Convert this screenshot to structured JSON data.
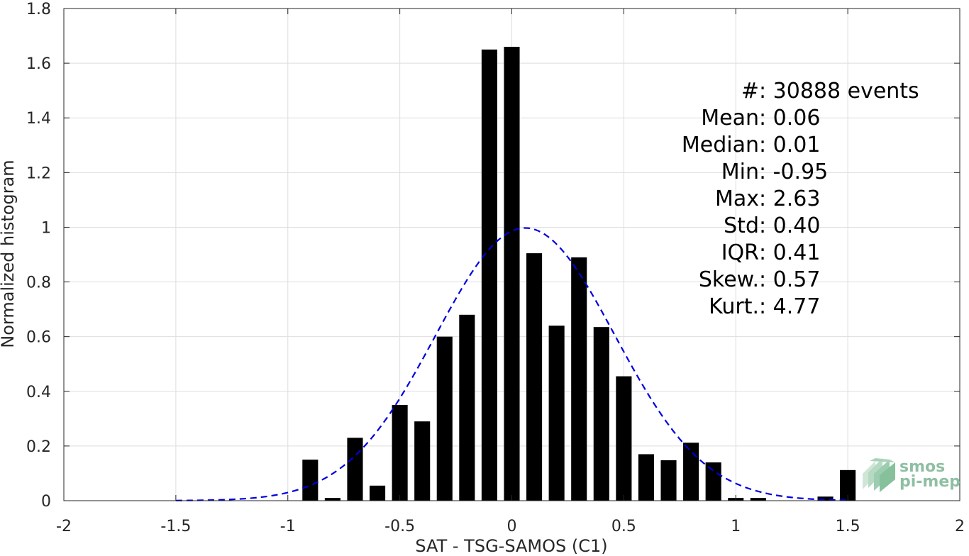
{
  "chart_data": {
    "type": "bar",
    "xlabel": "SAT - TSG-SAMOS (C1)",
    "ylabel": "Normalized histogram",
    "xlim": [
      -2,
      2
    ],
    "ylim": [
      0,
      1.8
    ],
    "xticks": [
      "-2",
      "-1.5",
      "-1",
      "-0.5",
      "0",
      "0.5",
      "1",
      "1.5",
      "2"
    ],
    "yticks": [
      "0",
      "0.2",
      "0.4",
      "0.6",
      "0.8",
      "1",
      "1.2",
      "1.4",
      "1.6",
      "1.8"
    ],
    "grid": true,
    "bar_width": 0.07,
    "bars": {
      "x": [
        -0.9,
        -0.8,
        -0.7,
        -0.6,
        -0.5,
        -0.4,
        -0.3,
        -0.2,
        -0.1,
        0.0,
        0.1,
        0.2,
        0.3,
        0.4,
        0.5,
        0.6,
        0.7,
        0.8,
        0.9,
        1.0,
        1.1,
        1.4,
        1.5
      ],
      "values": [
        0.15,
        0.01,
        0.23,
        0.055,
        0.35,
        0.29,
        0.6,
        0.68,
        1.65,
        1.66,
        0.905,
        0.64,
        0.89,
        0.635,
        0.455,
        0.17,
        0.148,
        0.212,
        0.14,
        0.01,
        0.01,
        0.015,
        0.112
      ],
      "color": "#000000"
    },
    "fit_curve": {
      "style": "dashed",
      "color": "#0000dd",
      "mean": 0.06,
      "std": 0.4,
      "x_range": [
        -1.5,
        1.5
      ]
    },
    "stats": [
      {
        "label": "#  ",
        "value": ": 30888 events"
      },
      {
        "label": "Mean ",
        "value": ": 0.06"
      },
      {
        "label": "Median ",
        "value": ": 0.01"
      },
      {
        "label": "Min ",
        "value": ": -0.95"
      },
      {
        "label": "Max ",
        "value": ": 2.63"
      },
      {
        "label": "Std ",
        "value": ": 0.40"
      },
      {
        "label": "IQR ",
        "value": ": 0.41"
      },
      {
        "label": "Skew. ",
        "value": ": 0.57"
      },
      {
        "label": "Kurt. ",
        "value": ": 4.77"
      }
    ]
  },
  "logo": {
    "line1": "smos",
    "line2": "pi-mep",
    "color": "#8fbfa2"
  }
}
